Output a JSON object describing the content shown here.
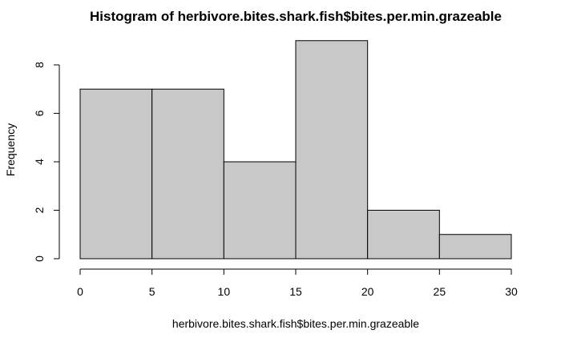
{
  "chart_data": {
    "type": "bar",
    "title": "Histogram of herbivore.bites.shark.fish$bites.per.min.grazeable",
    "xlabel": "herbivore.bites.shark.fish$bites.per.min.grazeable",
    "ylabel": "Frequency",
    "bins": [
      {
        "start": 0,
        "end": 5,
        "count": 7
      },
      {
        "start": 5,
        "end": 10,
        "count": 7
      },
      {
        "start": 10,
        "end": 15,
        "count": 4
      },
      {
        "start": 15,
        "end": 20,
        "count": 9
      },
      {
        "start": 20,
        "end": 25,
        "count": 2
      },
      {
        "start": 25,
        "end": 30,
        "count": 1
      }
    ],
    "xlim": [
      0,
      30
    ],
    "ylim": [
      0,
      9
    ],
    "x_ticks": [
      0,
      5,
      10,
      15,
      20,
      25,
      30
    ],
    "y_ticks": [
      0,
      2,
      4,
      6,
      8
    ],
    "grid": false,
    "colors": {
      "bar_fill": "#c8c8c8",
      "bar_stroke": "#000000"
    }
  }
}
